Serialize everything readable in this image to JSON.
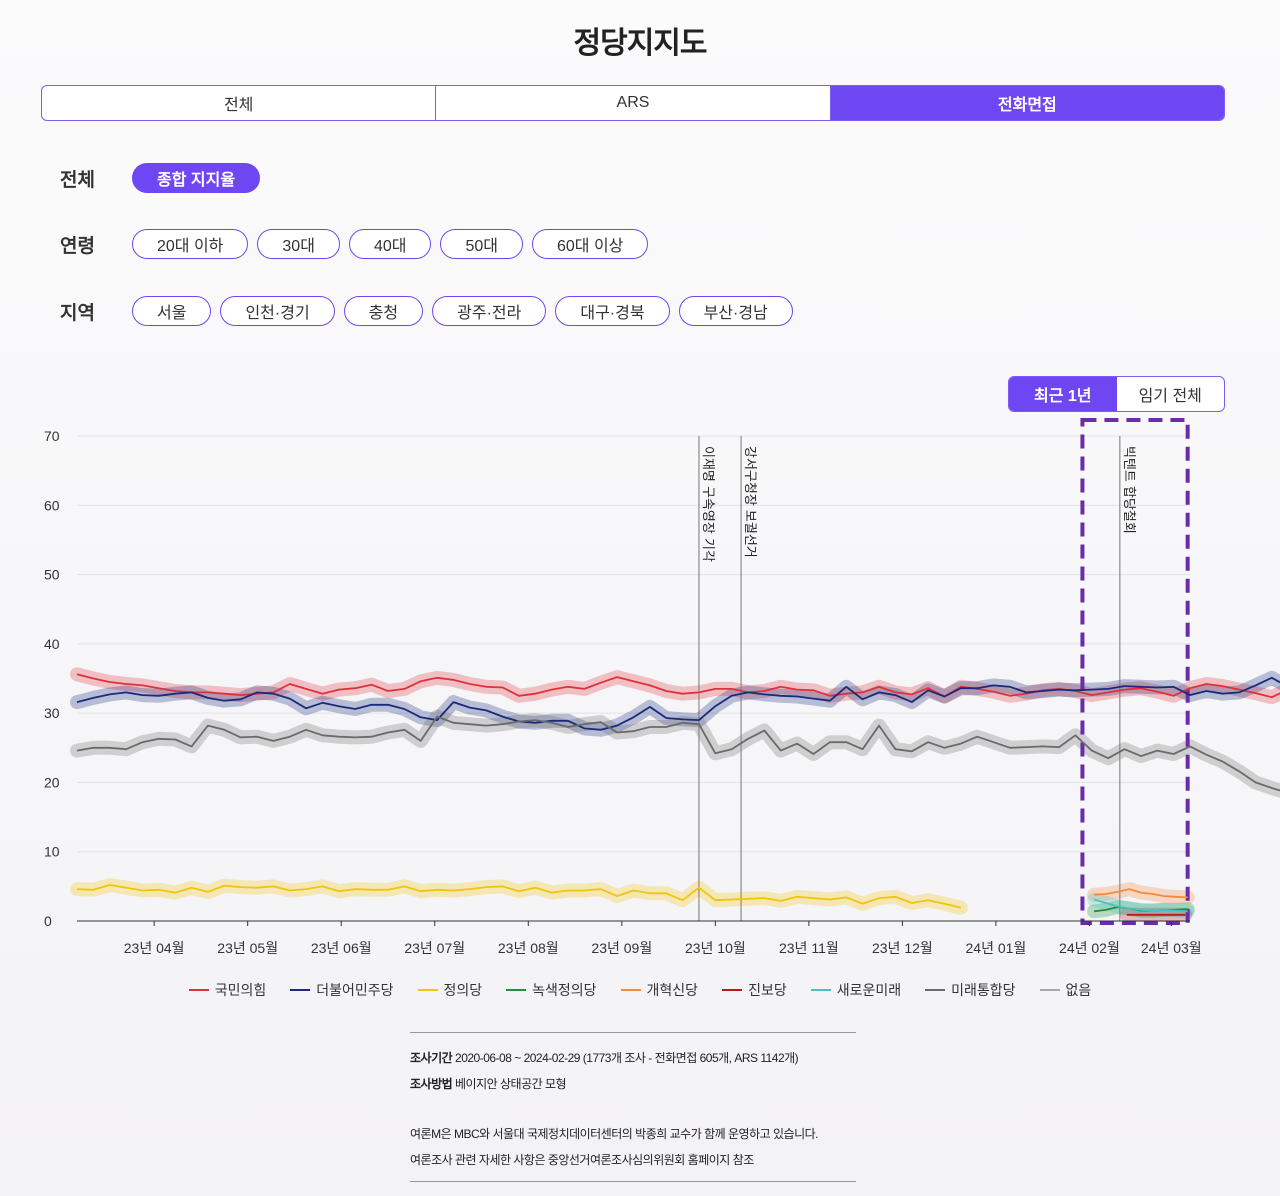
{
  "page": {
    "title": "정당지지도"
  },
  "mode_tabs": [
    {
      "label": "전체",
      "active": false
    },
    {
      "label": "ARS",
      "active": false
    },
    {
      "label": "전화면접",
      "active": true
    }
  ],
  "filters": {
    "overall": {
      "label": "전체",
      "options": [
        {
          "label": "종합 지지율",
          "active": true
        }
      ]
    },
    "age": {
      "label": "연령",
      "options": [
        {
          "label": "20대 이하",
          "active": false
        },
        {
          "label": "30대",
          "active": false
        },
        {
          "label": "40대",
          "active": false
        },
        {
          "label": "50대",
          "active": false
        },
        {
          "label": "60대 이상",
          "active": false
        }
      ]
    },
    "region": {
      "label": "지역",
      "options": [
        {
          "label": "서울",
          "active": false
        },
        {
          "label": "인천·경기",
          "active": false
        },
        {
          "label": "충청",
          "active": false
        },
        {
          "label": "광주·전라",
          "active": false
        },
        {
          "label": "대구·경북",
          "active": false
        },
        {
          "label": "부산·경남",
          "active": false
        }
      ]
    }
  },
  "range_toggle": [
    {
      "label": "최근 1년",
      "active": true
    },
    {
      "label": "임기 전체",
      "active": false
    }
  ],
  "colors": {
    "accent": "#6f47f2",
    "highlight_box": "#6a2ca8"
  },
  "chart_data": {
    "type": "line",
    "ylim": [
      0,
      70
    ],
    "y_ticks": [
      0,
      10,
      20,
      30,
      40,
      50,
      60,
      70
    ],
    "x_tick_labels": [
      "23년 04월",
      "23년 05월",
      "23년 06월",
      "23년 07월",
      "23년 08월",
      "23년 09월",
      "23년 10월",
      "23년 11월",
      "23년 12월",
      "24년 01월",
      "24년 02월",
      "24년 03월"
    ],
    "x_tick_pos": [
      4,
      8,
      12,
      16,
      20,
      24,
      28,
      32,
      36,
      40,
      44,
      47.5
    ],
    "x_range": [
      0.7,
      48.3
    ],
    "events": [
      {
        "x": 27.3,
        "label": "이재명 구속영장 기각"
      },
      {
        "x": 29.1,
        "label": "강서구청장 보궐선거"
      },
      {
        "x": 45.3,
        "label": "빅텐트 합당철회"
      }
    ],
    "highlight_range": [
      43.7,
      48.2
    ],
    "series": [
      {
        "name": "국민의힘",
        "color": "#e0313a",
        "x_start": 0.7,
        "x_step": 0.7,
        "values": [
          35.6,
          35,
          34.5,
          34.2,
          34,
          33.6,
          33.2,
          33,
          33,
          32.8,
          32.6,
          32.8,
          33,
          34.2,
          33.5,
          32.8,
          33.4,
          33.6,
          34.1,
          33.2,
          33.5,
          34.6,
          35.1,
          34.8,
          34.2,
          33.8,
          33.7,
          32.5,
          32.8,
          33.4,
          33.8,
          33.5,
          34.4,
          35.2,
          34.6,
          34,
          33.2,
          32.8,
          33,
          33.5,
          33.5,
          33,
          33.2,
          33.8,
          33.4,
          33.3,
          32.5,
          32.8,
          33,
          33.8,
          33,
          32.7,
          33.6,
          32.4,
          33.8,
          33.5,
          33.1,
          32.5,
          32.8,
          33.3,
          33.5,
          33.2,
          32.6,
          33,
          33.4,
          33.6,
          33.1,
          32.5,
          33.6,
          34.2,
          33.9,
          33.4,
          32.9,
          32.3,
          33.4,
          34.6,
          34.5,
          34.5,
          32.8,
          33,
          33.4,
          34.2,
          35.1,
          36.2,
          37,
          38,
          38.7,
          39
        ]
      },
      {
        "name": "더불어민주당",
        "color": "#1a2a7c",
        "x_start": 0.7,
        "x_step": 0.7,
        "values": [
          31.6,
          32.2,
          32.7,
          33,
          32.6,
          32.5,
          32.8,
          33,
          32.2,
          31.8,
          32,
          33,
          32.8,
          32.1,
          30.7,
          31.5,
          31,
          30.6,
          31.2,
          31.2,
          30.6,
          29.4,
          29,
          31.6,
          30.8,
          30.4,
          29.5,
          28.8,
          28.6,
          28.9,
          28.9,
          27.8,
          27.6,
          28.2,
          29.4,
          30.9,
          29.3,
          29.1,
          29,
          31,
          32.5,
          33,
          32.7,
          32.5,
          32.4,
          32.1,
          31.8,
          33.8,
          32,
          33,
          32.6,
          31.6,
          33.3,
          32.4,
          33.6,
          33.6,
          34,
          33.8,
          33,
          33.2,
          33.4,
          33.3,
          33.4,
          33.5,
          33.9,
          33.8,
          33.7,
          33.8,
          32.6,
          33.2,
          32.8,
          33,
          34,
          35.1,
          33.8,
          33.8,
          33.9,
          33,
          33.4,
          33.2
        ]
      },
      {
        "name": "정의당",
        "color": "#f2c40c",
        "x_start": 0.7,
        "x_step": 0.7,
        "values": [
          4.6,
          4.5,
          5.2,
          4.8,
          4.4,
          4.5,
          4.1,
          4.8,
          4.2,
          5.1,
          4.9,
          4.8,
          5,
          4.4,
          4.6,
          5,
          4.3,
          4.6,
          4.5,
          4.5,
          5,
          4.3,
          4.5,
          4.4,
          4.6,
          4.9,
          5,
          4.3,
          4.8,
          4.1,
          4.4,
          4.4,
          4.6,
          3.6,
          4.4,
          4,
          4,
          3,
          4.8,
          3,
          3.1,
          3.2,
          3.3,
          2.9,
          3.5,
          3.3,
          3.1,
          3.4,
          2.5,
          3.3,
          3.5,
          2.6,
          3,
          2.5,
          1.9
        ]
      },
      {
        "name": "녹색정의당",
        "color": "#1e8f3a",
        "x_start": 44.2,
        "x_step": 0.5,
        "values": [
          1.4,
          1.6,
          2,
          1.8,
          1.5,
          1.5,
          1.6,
          1.6,
          1.7
        ]
      },
      {
        "name": "개혁신당",
        "color": "#f58a3c",
        "x_start": 44.2,
        "x_step": 0.5,
        "values": [
          3.8,
          3.9,
          4.2,
          4.6,
          4.1,
          3.9,
          3.6,
          3.5,
          3.4
        ]
      },
      {
        "name": "진보당",
        "color": "#c0141e",
        "x_start": 45.6,
        "x_step": 0.5,
        "values": [
          0.9,
          0.9,
          0.9,
          0.9,
          0.9,
          0.9
        ]
      },
      {
        "name": "새로운미래",
        "color": "#45c4c4",
        "x_start": 44.2,
        "x_step": 0.5,
        "values": [
          3.1,
          2.6,
          2.1,
          1.8,
          1.6,
          1.5,
          1.6,
          1.5,
          1.4
        ]
      },
      {
        "name": "미래통합당",
        "color": "#6a6a6a",
        "x_start": 0.7,
        "x_step": 0.7,
        "values": [
          24.6,
          25,
          25,
          24.8,
          25.8,
          26.3,
          26.2,
          25.2,
          28.2,
          27.6,
          26.5,
          26.6,
          26,
          26.6,
          27.6,
          26.8,
          26.6,
          26.5,
          26.6,
          27.2,
          27.6,
          26,
          29.5,
          28.6,
          28.4,
          28.2,
          28.4,
          28.8,
          29,
          28.6,
          28,
          28.4,
          28.7,
          27.2,
          27.4,
          28,
          28,
          28.6,
          28.4,
          24.2,
          24.8,
          26.3,
          27.5,
          24.6,
          25.6,
          24.1,
          25.8,
          25.8,
          24.8,
          28.2,
          24.8,
          24.5,
          25.8,
          25,
          25.6,
          26.6,
          25.8,
          25,
          25.1,
          25.2,
          25.1,
          26.8,
          24.6,
          23.5,
          24.8,
          23.8,
          24.6,
          24.1,
          25.2,
          24,
          23,
          21.6,
          20,
          19.2,
          18.5,
          18.2,
          18.2,
          17.6,
          17.4
        ]
      },
      {
        "name": "없음",
        "color": "#a8a8a8",
        "x_start": 0,
        "x_step": 1,
        "values": []
      }
    ]
  },
  "notes": {
    "period_label": "조사기간",
    "period_value": "2020-06-08 ~ 2024-02-29 (1773개 조사 - 전화면접 605개, ARS 1142개)",
    "method_label": "조사방법",
    "method_value": "베이지안 상태공간 모형",
    "line1": "여론M은 MBC와 서울대 국제정치데이터센터의 박종희 교수가 함께 운영하고 있습니다.",
    "line2": "여론조사 관련 자세한 사항은 중앙선거여론조사심의위원회 홈페이지 참조"
  }
}
